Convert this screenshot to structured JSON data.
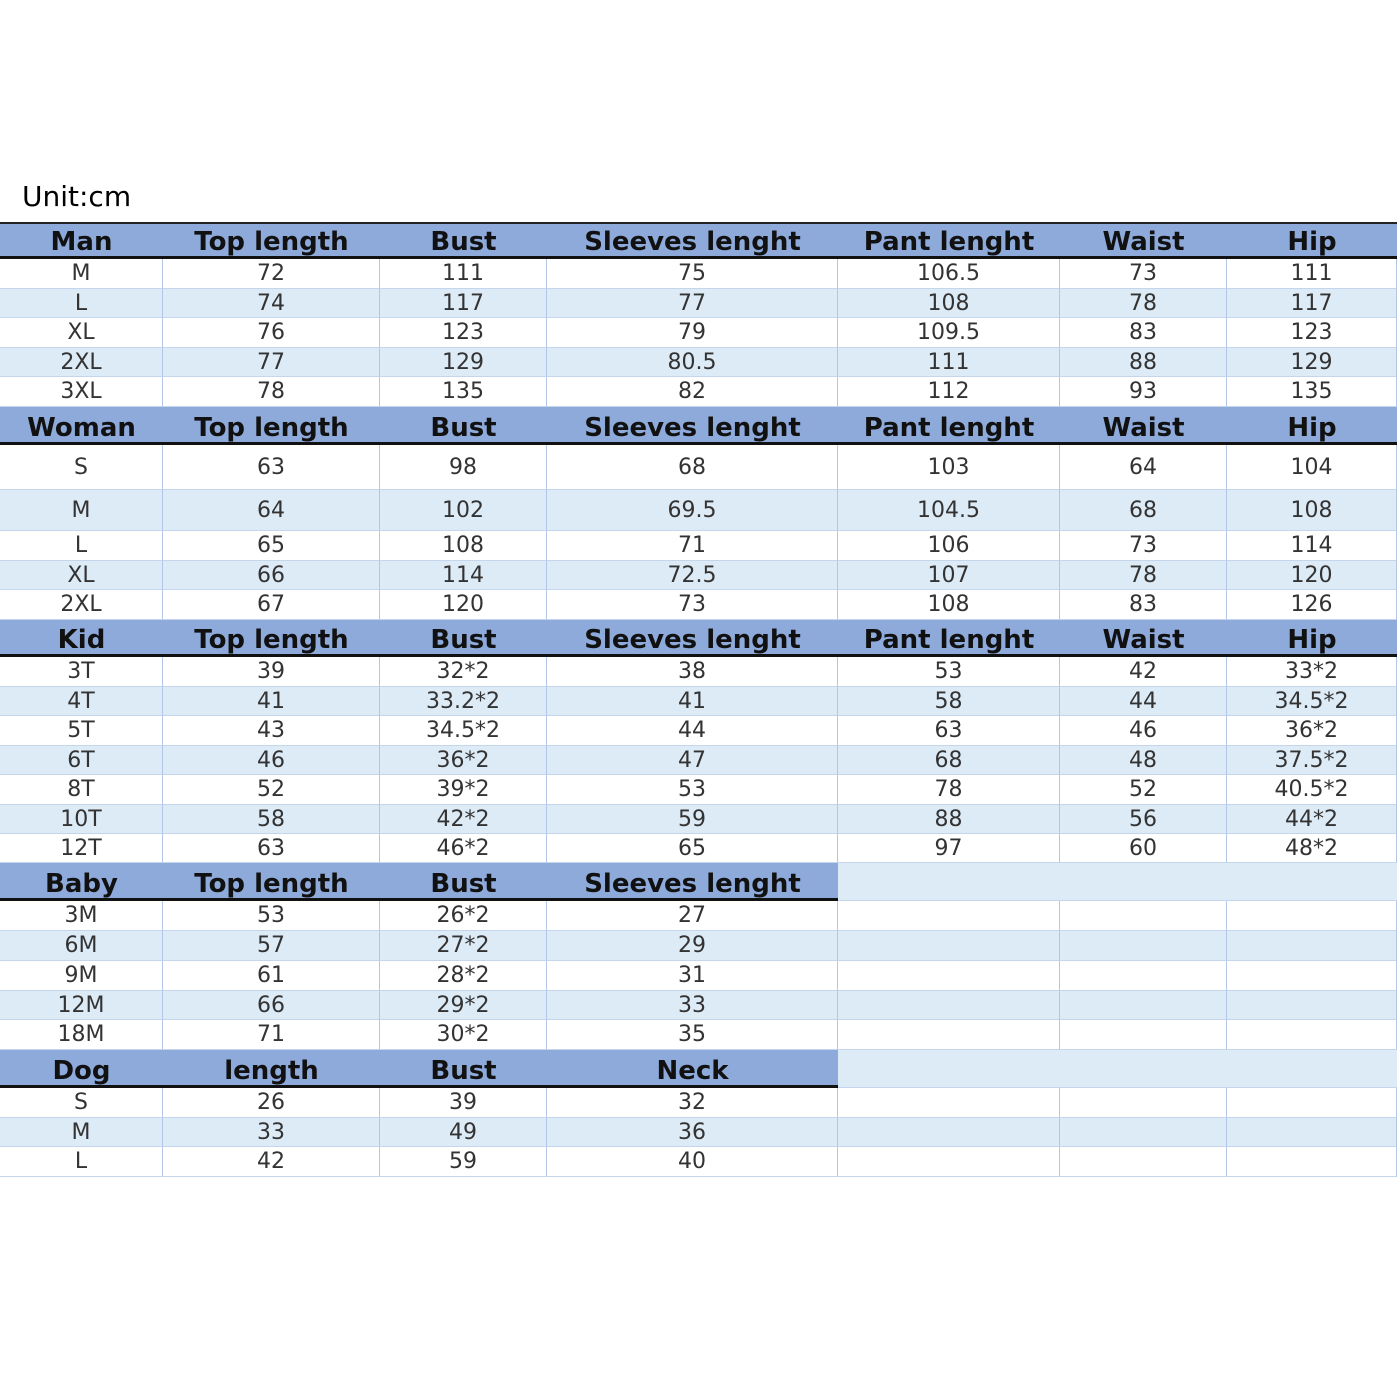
{
  "unit": "Unit:cm",
  "sections": [
    {
      "header": [
        "Man",
        "Top length",
        "Bust",
        "Sleeves lenght",
        "Pant lenght",
        "Waist",
        "Hip"
      ],
      "rows": [
        [
          "M",
          "72",
          "111",
          "75",
          "106.5",
          "73",
          "111"
        ],
        [
          "L",
          "74",
          "117",
          "77",
          "108",
          "78",
          "117"
        ],
        [
          "XL",
          "76",
          "123",
          "79",
          "109.5",
          "83",
          "123"
        ],
        [
          "2XL",
          "77",
          "129",
          "80.5",
          "111",
          "88",
          "129"
        ],
        [
          "3XL",
          "78",
          "135",
          "82",
          "112",
          "93",
          "135"
        ]
      ]
    },
    {
      "header": [
        "Woman",
        "Top length",
        "Bust",
        "Sleeves lenght",
        "Pant lenght",
        "Waist",
        "Hip"
      ],
      "rows": [
        [
          "S",
          "63",
          "98",
          "68",
          "103",
          "64",
          "104"
        ],
        [
          "M",
          "64",
          "102",
          "69.5",
          "104.5",
          "68",
          "108"
        ],
        [
          "L",
          "65",
          "108",
          "71",
          "106",
          "73",
          "114"
        ],
        [
          "XL",
          "66",
          "114",
          "72.5",
          "107",
          "78",
          "120"
        ],
        [
          "2XL",
          "67",
          "120",
          "73",
          "108",
          "83",
          "126"
        ]
      ]
    },
    {
      "header": [
        "Kid",
        "Top length",
        "Bust",
        "Sleeves lenght",
        "Pant lenght",
        "Waist",
        "Hip"
      ],
      "rows": [
        [
          "3T",
          "39",
          "32*2",
          "38",
          "53",
          "42",
          "33*2"
        ],
        [
          "4T",
          "41",
          "33.2*2",
          "41",
          "58",
          "44",
          "34.5*2"
        ],
        [
          "5T",
          "43",
          "34.5*2",
          "44",
          "63",
          "46",
          "36*2"
        ],
        [
          "6T",
          "46",
          "36*2",
          "47",
          "68",
          "48",
          "37.5*2"
        ],
        [
          "8T",
          "52",
          "39*2",
          "53",
          "78",
          "52",
          "40.5*2"
        ],
        [
          "10T",
          "58",
          "42*2",
          "59",
          "88",
          "56",
          "44*2"
        ],
        [
          "12T",
          "63",
          "46*2",
          "65",
          "97",
          "60",
          "48*2"
        ]
      ]
    },
    {
      "header": [
        "Baby",
        "Top length",
        "Bust",
        "Sleeves lenght"
      ],
      "rows": [
        [
          "3M",
          "53",
          "26*2",
          "27"
        ],
        [
          "6M",
          "57",
          "27*2",
          "29"
        ],
        [
          "9M",
          "61",
          "28*2",
          "31"
        ],
        [
          "12M",
          "66",
          "29*2",
          "33"
        ],
        [
          "18M",
          "71",
          "30*2",
          "35"
        ]
      ]
    },
    {
      "header": [
        "Dog",
        "length",
        "Bust",
        "Neck"
      ],
      "rows": [
        [
          "S",
          "26",
          "39",
          "32"
        ],
        [
          "M",
          "33",
          "49",
          "36"
        ],
        [
          "L",
          "42",
          "59",
          "40"
        ]
      ]
    }
  ]
}
